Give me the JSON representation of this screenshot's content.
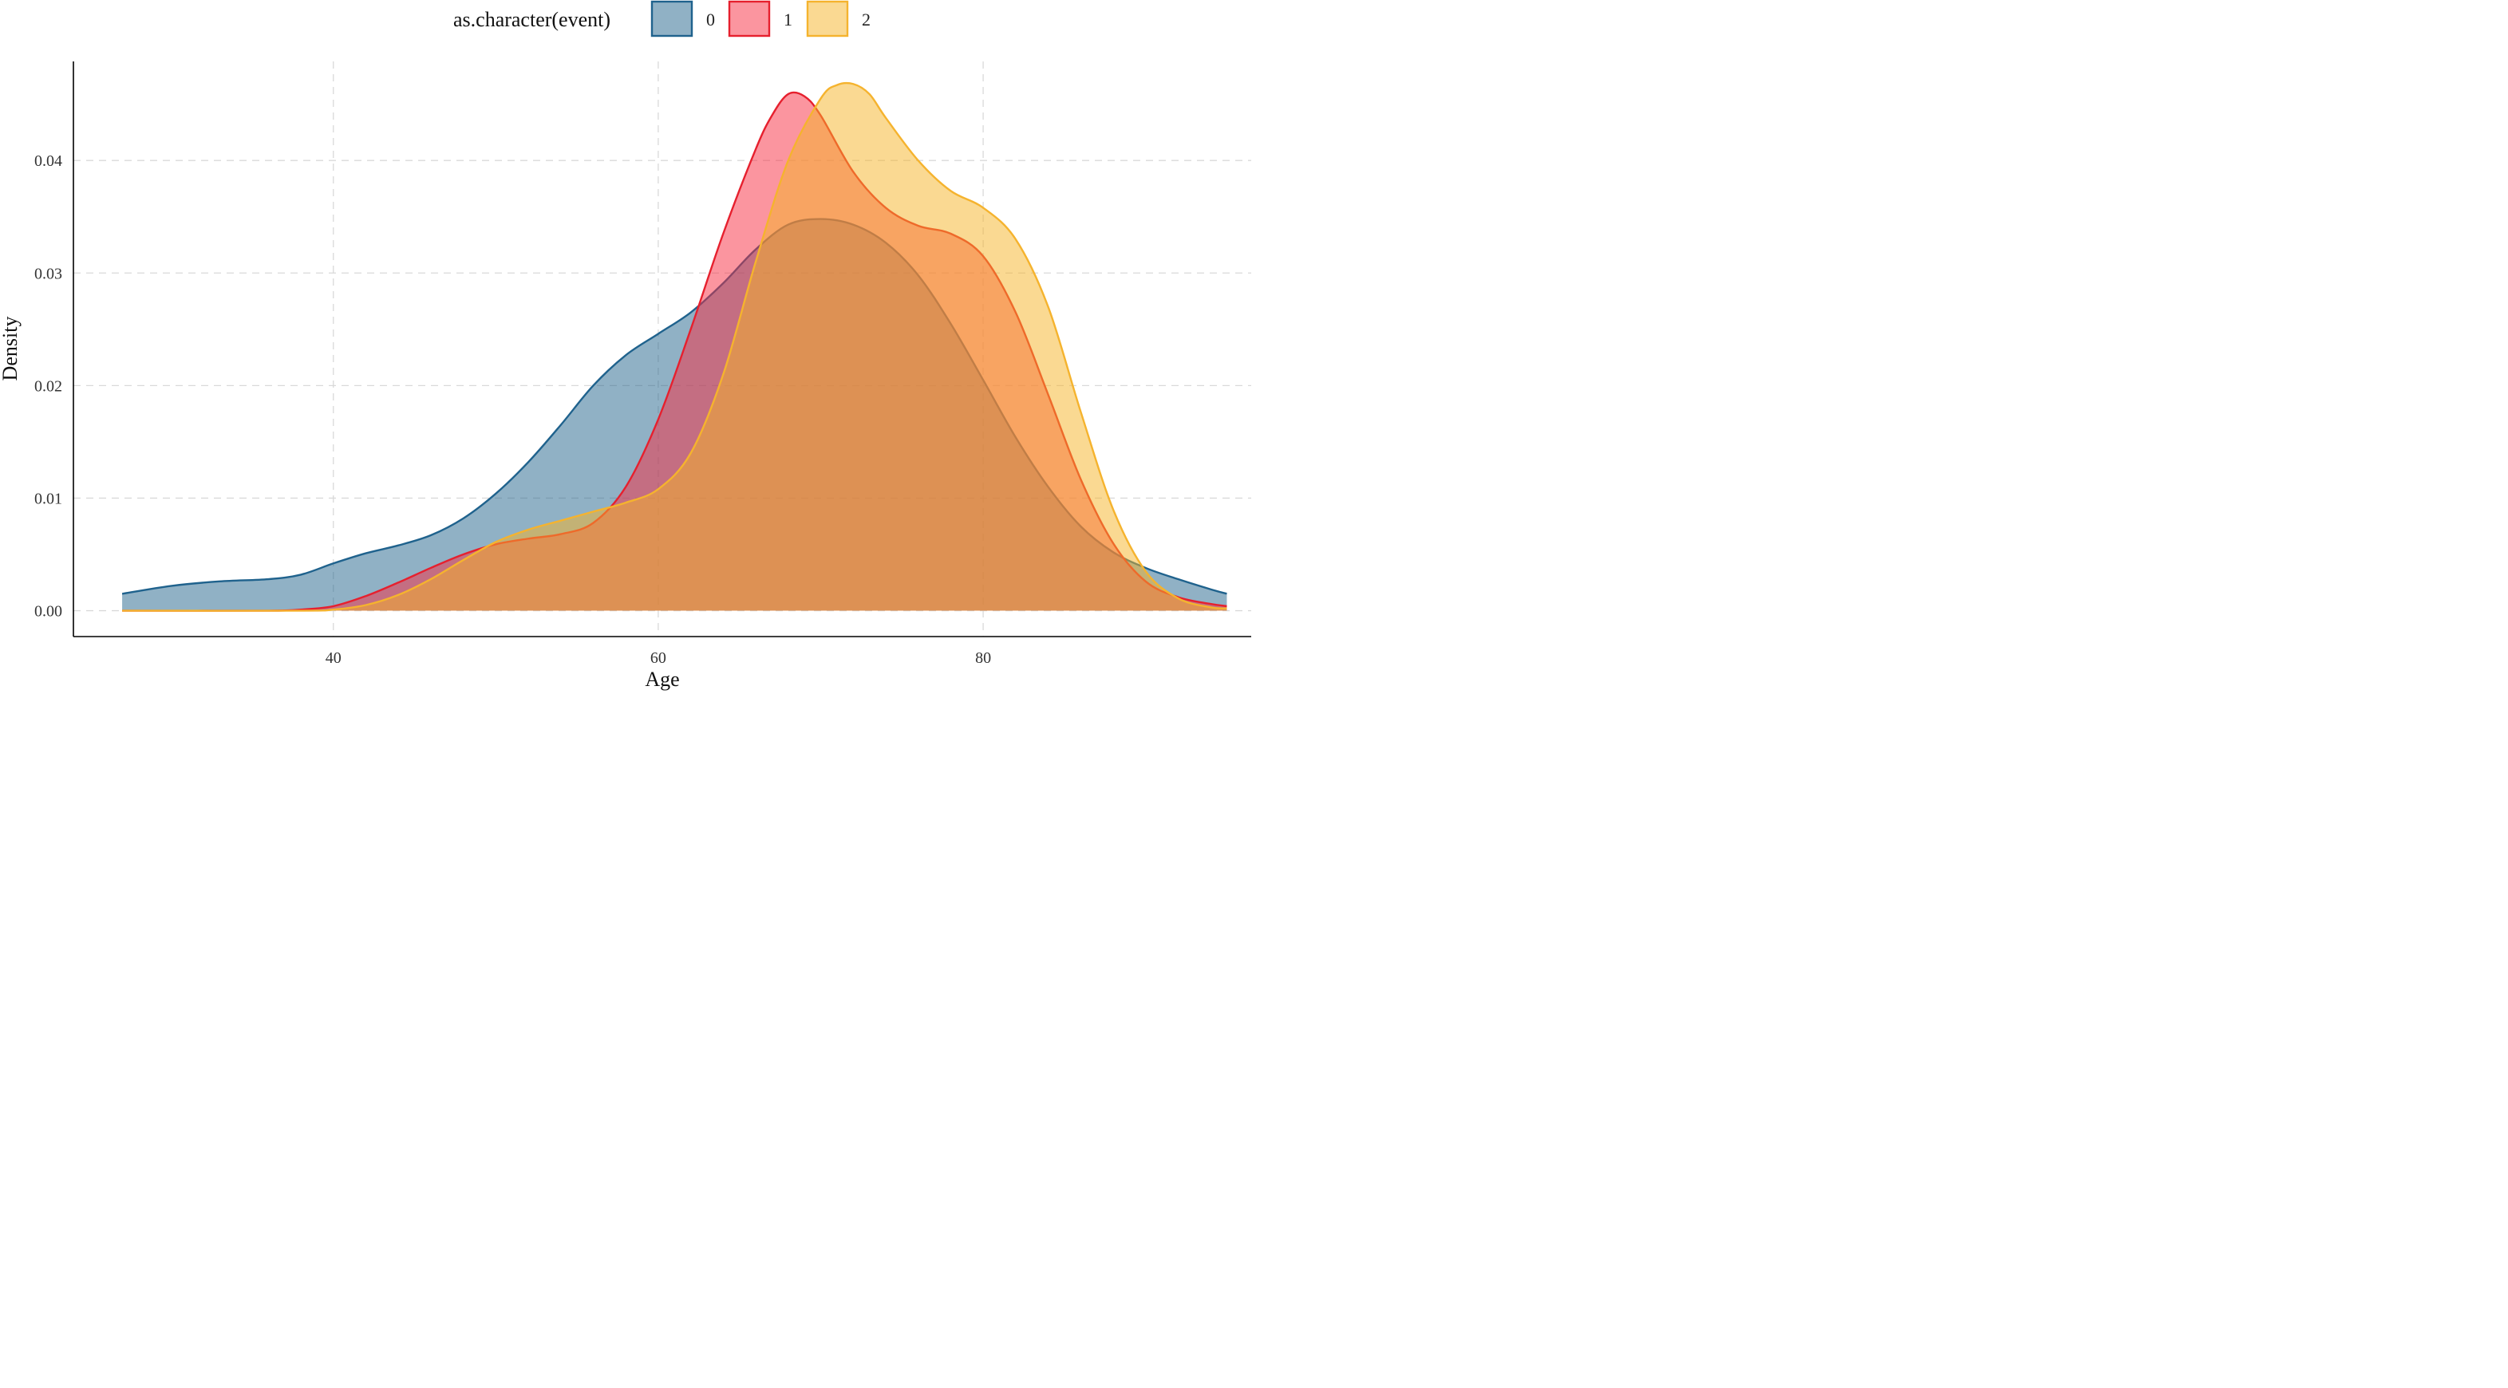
{
  "chart_data": {
    "type": "area",
    "subtype": "density",
    "title": "",
    "xlabel": "Age",
    "ylabel": "Density",
    "xlim": [
      24,
      96.5
    ],
    "ylim": [
      -0.0023,
      0.0488
    ],
    "x_ticks": [
      40,
      60,
      80
    ],
    "y_ticks": [
      0.0,
      0.01,
      0.02,
      0.03,
      0.04
    ],
    "y_tick_labels": [
      "0.00",
      "0.01",
      "0.02",
      "0.03",
      "0.04"
    ],
    "grid": true,
    "legend": {
      "title": "as.character(event)",
      "placement": "top",
      "entries": [
        "0",
        "1",
        "2"
      ]
    },
    "fill_opacity": 0.5,
    "series": [
      {
        "name": "0",
        "fill": "#22638C",
        "stroke": "#1F628D",
        "points": [
          [
            27,
            0.0015
          ],
          [
            30,
            0.0022
          ],
          [
            33,
            0.0026
          ],
          [
            36,
            0.0028
          ],
          [
            38,
            0.0032
          ],
          [
            40,
            0.0042
          ],
          [
            42,
            0.0051
          ],
          [
            44,
            0.0058
          ],
          [
            46,
            0.0067
          ],
          [
            48,
            0.0082
          ],
          [
            50,
            0.0104
          ],
          [
            52,
            0.0132
          ],
          [
            54,
            0.0165
          ],
          [
            56,
            0.02
          ],
          [
            58,
            0.0227
          ],
          [
            60,
            0.0246
          ],
          [
            62,
            0.0265
          ],
          [
            64,
            0.0291
          ],
          [
            66,
            0.0321
          ],
          [
            68,
            0.0343
          ],
          [
            70,
            0.0348
          ],
          [
            72,
            0.0343
          ],
          [
            74,
            0.0327
          ],
          [
            76,
            0.0298
          ],
          [
            78,
            0.0255
          ],
          [
            80,
            0.0205
          ],
          [
            82,
            0.0154
          ],
          [
            84,
            0.011
          ],
          [
            86,
            0.0075
          ],
          [
            88,
            0.0052
          ],
          [
            90,
            0.0038
          ],
          [
            92,
            0.0028
          ],
          [
            94,
            0.0019
          ],
          [
            95,
            0.0015
          ]
        ]
      },
      {
        "name": "1",
        "fill": "#F72B3F",
        "stroke": "#E6202E",
        "points": [
          [
            27,
            0.0
          ],
          [
            36,
            0.0
          ],
          [
            38,
            0.0001
          ],
          [
            40,
            0.0004
          ],
          [
            42,
            0.0013
          ],
          [
            44,
            0.0025
          ],
          [
            46,
            0.0038
          ],
          [
            48,
            0.005
          ],
          [
            50,
            0.0059
          ],
          [
            52,
            0.0064
          ],
          [
            54,
            0.0068
          ],
          [
            56,
            0.0078
          ],
          [
            58,
            0.011
          ],
          [
            60,
            0.017
          ],
          [
            62,
            0.025
          ],
          [
            64,
            0.0335
          ],
          [
            66,
            0.041
          ],
          [
            67,
            0.044
          ],
          [
            68,
            0.0459
          ],
          [
            69,
            0.0457
          ],
          [
            70,
            0.044
          ],
          [
            72,
            0.039
          ],
          [
            74,
            0.0358
          ],
          [
            76,
            0.0342
          ],
          [
            78,
            0.0335
          ],
          [
            80,
            0.0315
          ],
          [
            82,
            0.0265
          ],
          [
            84,
            0.0192
          ],
          [
            86,
            0.0117
          ],
          [
            88,
            0.006
          ],
          [
            90,
            0.0026
          ],
          [
            92,
            0.0012
          ],
          [
            94,
            0.0006
          ],
          [
            95,
            0.0004
          ]
        ]
      },
      {
        "name": "2",
        "fill": "#F5B325",
        "stroke": "#F5B32E",
        "points": [
          [
            27,
            0.0
          ],
          [
            38,
            0.0
          ],
          [
            40,
            0.0001
          ],
          [
            42,
            0.0005
          ],
          [
            44,
            0.0014
          ],
          [
            46,
            0.0028
          ],
          [
            48,
            0.0045
          ],
          [
            50,
            0.0061
          ],
          [
            52,
            0.0072
          ],
          [
            54,
            0.008
          ],
          [
            56,
            0.0088
          ],
          [
            58,
            0.0096
          ],
          [
            60,
            0.0108
          ],
          [
            62,
            0.014
          ],
          [
            64,
            0.021
          ],
          [
            66,
            0.031
          ],
          [
            68,
            0.04
          ],
          [
            70,
            0.0455
          ],
          [
            71,
            0.0467
          ],
          [
            72,
            0.0468
          ],
          [
            73,
            0.0459
          ],
          [
            74,
            0.0438
          ],
          [
            76,
            0.04
          ],
          [
            78,
            0.0373
          ],
          [
            80,
            0.0358
          ],
          [
            82,
            0.033
          ],
          [
            84,
            0.027
          ],
          [
            86,
            0.0177
          ],
          [
            88,
            0.009
          ],
          [
            90,
            0.0035
          ],
          [
            92,
            0.0011
          ],
          [
            94,
            0.0003
          ],
          [
            95,
            0.0002
          ]
        ]
      }
    ]
  }
}
